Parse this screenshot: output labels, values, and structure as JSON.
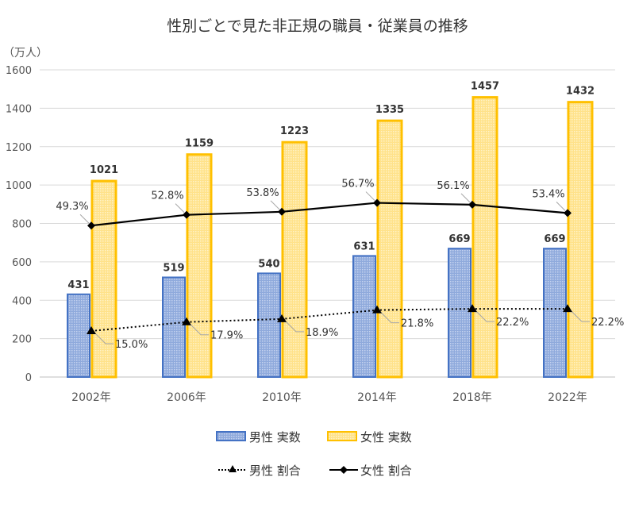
{
  "chart_data": {
    "type": "bar",
    "title": "性別ごとで見た非正規の職員・従業員の推移",
    "ylabel": "（万人）",
    "ylim": [
      0,
      1600
    ],
    "yticks": [
      "0",
      "200",
      "400",
      "600",
      "800",
      "1000",
      "1200",
      "1400",
      "1600"
    ],
    "secondary_ylim_percent": [
      0,
      100
    ],
    "grid": true,
    "legend_placement": "bottom",
    "categories": [
      "2002年",
      "2006年",
      "2010年",
      "2014年",
      "2018年",
      "2022年"
    ],
    "series": [
      {
        "name": "男性 実数",
        "kind": "bar",
        "color": "#4472C4",
        "values": [
          431,
          519,
          540,
          631,
          669,
          669
        ]
      },
      {
        "name": "女性 実数",
        "kind": "bar",
        "color": "#FFC000",
        "values": [
          1021,
          1159,
          1223,
          1335,
          1457,
          1432
        ]
      },
      {
        "name": "男性 割合",
        "kind": "line",
        "style": "dotted",
        "marker": "triangle",
        "axis": "secondary",
        "values": [
          15.0,
          17.9,
          18.9,
          21.8,
          22.2,
          22.2
        ],
        "labels": [
          "15.0%",
          "17.9%",
          "18.9%",
          "21.8%",
          "22.2%",
          "22.2%"
        ]
      },
      {
        "name": "女性 割合",
        "kind": "line",
        "style": "solid",
        "marker": "diamond",
        "axis": "secondary",
        "values": [
          49.3,
          52.8,
          53.8,
          56.7,
          56.1,
          53.4
        ],
        "labels": [
          "49.3%",
          "52.8%",
          "53.8%",
          "56.7%",
          "56.1%",
          "53.4%"
        ]
      }
    ]
  }
}
